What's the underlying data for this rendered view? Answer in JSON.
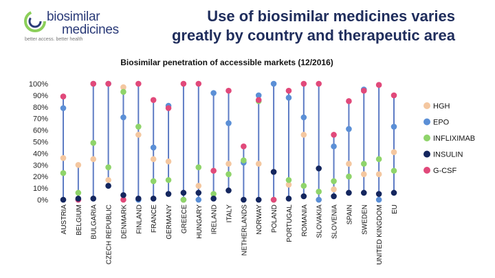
{
  "logo": {
    "name_line1": "biosimilar",
    "name_line2": "medicines",
    "tagline": "better access. better health"
  },
  "headline": {
    "line1": "Use of biosimilar medicines varies",
    "line2": "greatly by country and therapeutic area"
  },
  "colors": {
    "HGH": "#f4c7a0",
    "EPO": "#5b8fd6",
    "INFLIXIMAB": "#8fd46a",
    "INSULIN": "#14265e",
    "G-CSF": "#e1497a",
    "line": "#5d7bc4"
  },
  "chart_data": {
    "type": "scatter",
    "title": "Biosimilar penetration of accessible markets (12/2016)",
    "ylim": [
      0,
      100
    ],
    "y_ticks": [
      "0%",
      "10%",
      "20%",
      "30%",
      "40%",
      "50%",
      "60%",
      "70%",
      "80%",
      "90%",
      "100%"
    ],
    "categories": [
      "AUSTRIA",
      "BELGIUM",
      "BULGARIA",
      "CZECH REPUBLIC",
      "DENMARK",
      "FINLAND",
      "FRANCE",
      "GERMANY",
      "GREECE",
      "HUNGARY",
      "IRELAND",
      "ITALY",
      "NETHERLANDS",
      "NORWAY",
      "POLAND",
      "PORTUGAL",
      "ROMANIA",
      "SLOVAKIA",
      "SLOVENIA",
      "SPAIN",
      "SWEDEN",
      "UNITED KINGDOM",
      "EU"
    ],
    "legend": [
      "HGH",
      "EPO",
      "INFLIXIMAB",
      "INSULIN",
      "G-CSF"
    ],
    "legend_position": "right",
    "series": [
      {
        "name": "HGH",
        "values": [
          36,
          30,
          35,
          17,
          97,
          56,
          35,
          33,
          0,
          12,
          25,
          31,
          33,
          31,
          24,
          13,
          56,
          0,
          9,
          31,
          22,
          22,
          41
        ]
      },
      {
        "name": "EPO",
        "values": [
          79,
          0,
          100,
          100,
          71,
          0,
          45,
          81,
          0,
          0,
          92,
          66,
          32,
          90,
          100,
          88,
          71,
          0,
          46,
          61,
          95,
          0,
          63
        ]
      },
      {
        "name": "INFLIXIMAB",
        "values": [
          23,
          6,
          49,
          28,
          93,
          63,
          16,
          17,
          0,
          28,
          5,
          22,
          34,
          85,
          0,
          17,
          12,
          7,
          16,
          20,
          31,
          35,
          25
        ]
      },
      {
        "name": "INSULIN",
        "values": [
          0,
          1,
          1,
          12,
          4,
          1,
          1,
          5,
          6,
          6,
          1,
          8,
          0,
          0,
          24,
          1,
          3,
          27,
          3,
          6,
          6,
          5,
          6
        ]
      },
      {
        "name": "G-CSF",
        "values": [
          89,
          0,
          100,
          100,
          0,
          100,
          86,
          79,
          100,
          100,
          25,
          94,
          46,
          86,
          0,
          94,
          100,
          100,
          56,
          85,
          94,
          99,
          90
        ]
      }
    ]
  }
}
